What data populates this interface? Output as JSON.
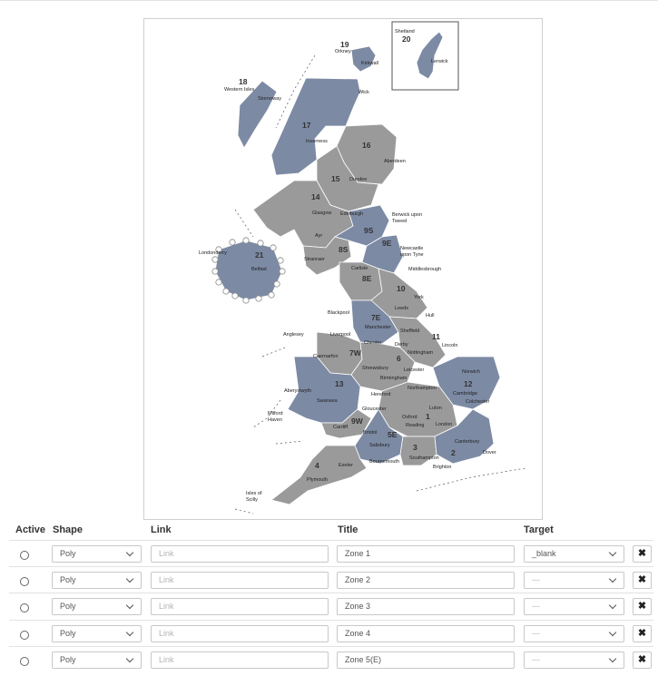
{
  "map": {
    "zones": [
      {
        "num": "18",
        "city": "Western Isles"
      },
      {
        "num": "19",
        "city": "Orkney"
      },
      {
        "num": "20",
        "city": "Shetland"
      },
      {
        "num": "17"
      },
      {
        "num": "16"
      },
      {
        "num": "15"
      },
      {
        "num": "14"
      },
      {
        "num": "21"
      },
      {
        "num": "9S"
      },
      {
        "num": "9E"
      },
      {
        "num": "8S"
      },
      {
        "num": "8E"
      },
      {
        "num": "10"
      },
      {
        "num": "7E"
      },
      {
        "num": "11"
      },
      {
        "num": "7W"
      },
      {
        "num": "6"
      },
      {
        "num": "13"
      },
      {
        "num": "12"
      },
      {
        "num": "1"
      },
      {
        "num": "9W"
      },
      {
        "num": "5E"
      },
      {
        "num": "3"
      },
      {
        "num": "2"
      },
      {
        "num": "4"
      }
    ],
    "places": [
      "Kirkwall",
      "Lerwick",
      "Stornoway",
      "Wick",
      "Inverness",
      "Aberdeen",
      "Dundee",
      "Edinburgh",
      "Glasgow",
      "Berwick upon",
      "Tweed",
      "Ayr",
      "Londonderry",
      "Belfast",
      "Stranraer",
      "Newcastle",
      "upon Tyne",
      "Middlesbrough",
      "Carlisle",
      "York",
      "Leeds",
      "Hull",
      "Blackpool",
      "Manchester",
      "Sheffield",
      "Anglesey",
      "Liverpool",
      "Chester",
      "Lincoln",
      "Caernarfon",
      "Derby",
      "Nottingham",
      "Shrewsbury",
      "Leicester",
      "Norwich",
      "Birmingham",
      "Aberystwyth",
      "Northampton",
      "Hereford",
      "Cambridge",
      "Swansea",
      "Gloucester",
      "Luton",
      "Colchester",
      "Milford",
      "Haven",
      "Oxford",
      "Cardiff",
      "Reading",
      "London",
      "Bristol",
      "Salisbury",
      "Canterbury",
      "Southampton",
      "Bournemouth",
      "Dover",
      "Brighton",
      "Exeter",
      "Plymouth",
      "Isles of",
      "Scilly"
    ]
  },
  "table": {
    "headers": {
      "active": "Active",
      "shape": "Shape",
      "link": "Link",
      "title": "Title",
      "target": "Target"
    },
    "delete_icon": "✖",
    "rows": [
      {
        "shape": "Poly",
        "link_placeholder": "Link",
        "title": "Zone 1",
        "target": "_blank"
      },
      {
        "shape": "Poly",
        "link_placeholder": "Link",
        "title": "Zone 2",
        "target": "---"
      },
      {
        "shape": "Poly",
        "link_placeholder": "Link",
        "title": "Zone 3",
        "target": "---"
      },
      {
        "shape": "Poly",
        "link_placeholder": "Link",
        "title": "Zone 4",
        "target": "---"
      },
      {
        "shape": "Poly",
        "link_placeholder": "Link",
        "title": "Zone 5(E)",
        "target": "---"
      }
    ]
  }
}
